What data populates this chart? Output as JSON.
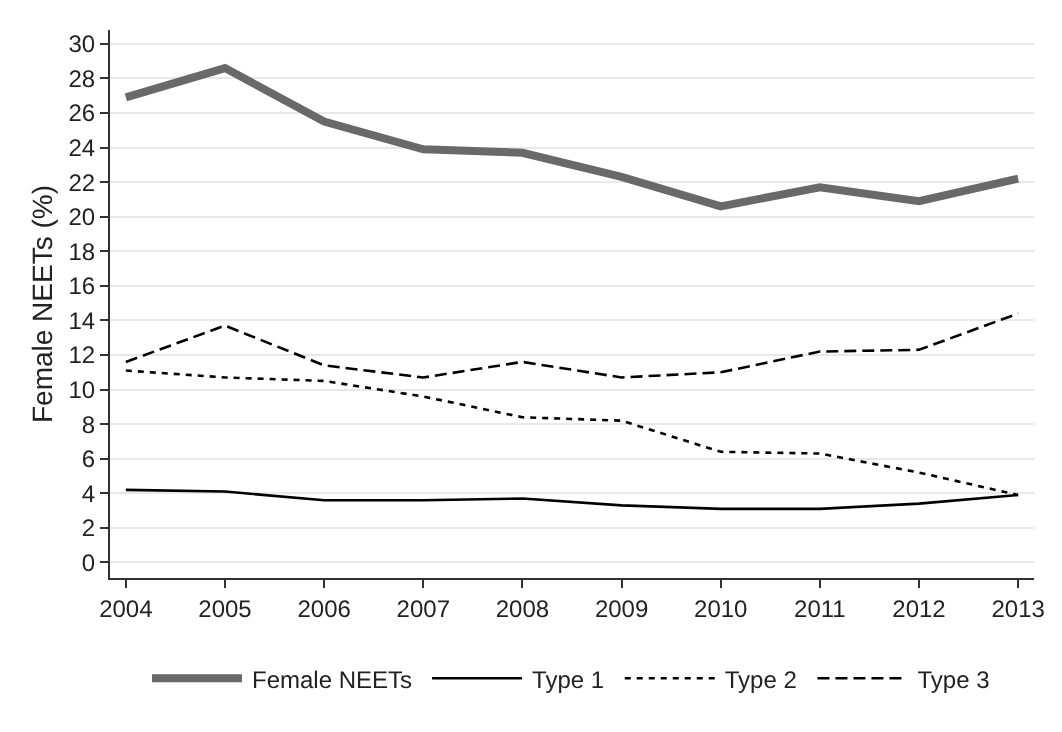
{
  "chart_data": {
    "type": "line",
    "ylabel": "Female NEETs (%)",
    "x": [
      2004,
      2005,
      2006,
      2007,
      2008,
      2009,
      2010,
      2011,
      2012,
      2013
    ],
    "xlim": [
      2003.84,
      2013.16
    ],
    "xticks": [
      2004,
      2005,
      2006,
      2007,
      2008,
      2009,
      2010,
      2011,
      2012,
      2013
    ],
    "ylim": [
      -0.9,
      30.8
    ],
    "yticks": [
      0,
      2,
      4,
      6,
      8,
      10,
      12,
      14,
      16,
      18,
      20,
      22,
      24,
      26,
      28,
      30
    ],
    "grid": "y",
    "legend": "bottom",
    "marker": "none",
    "series": [
      {
        "name": "Female NEETs",
        "color": "#696969",
        "line_style": "solid",
        "values": [
          26.9,
          28.6,
          25.5,
          23.9,
          23.7,
          22.3,
          20.6,
          21.7,
          20.9,
          22.2
        ]
      },
      {
        "name": "Type 1",
        "color": "#000000",
        "line_style": "solid",
        "values": [
          4.2,
          4.1,
          3.6,
          3.6,
          3.7,
          3.3,
          3.1,
          3.1,
          3.4,
          3.9
        ]
      },
      {
        "name": "Type 2",
        "color": "#000000",
        "line_style": "dotted",
        "values": [
          11.1,
          10.7,
          10.5,
          9.6,
          8.4,
          8.2,
          6.4,
          6.3,
          5.2,
          3.9
        ]
      },
      {
        "name": "Type 3",
        "color": "#000000",
        "line_style": "dashed",
        "values": [
          11.6,
          13.7,
          11.4,
          10.7,
          11.6,
          10.7,
          11.0,
          12.2,
          12.3,
          14.4
        ]
      }
    ]
  }
}
